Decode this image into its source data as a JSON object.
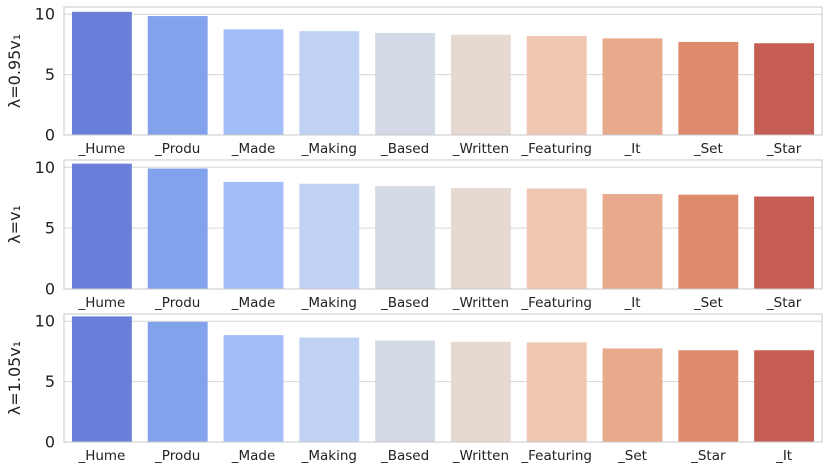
{
  "chart_data": [
    {
      "type": "bar",
      "ylabel": "λ=0.95v₁",
      "ylim": [
        0,
        10.6
      ],
      "yticks": [
        0,
        5,
        10
      ],
      "grid": true,
      "categories": [
        "_Hume",
        "_Produ",
        "_Made",
        "_Making",
        "_Based",
        "_Written",
        "_Featuring",
        "_It",
        "_Set",
        "_Star"
      ],
      "values": [
        10.2,
        9.85,
        8.75,
        8.6,
        8.45,
        8.3,
        8.2,
        8.0,
        7.7,
        7.6
      ],
      "colors": [
        "#6a7fd9",
        "#82a2ec",
        "#a2bdf7",
        "#bfd2f4",
        "#d4dae6",
        "#e6d9d1",
        "#efc6b2",
        "#e8a98c",
        "#dd8a6d",
        "#c65d52"
      ]
    },
    {
      "type": "bar",
      "ylabel": "λ=v₁",
      "ylim": [
        0,
        10.6
      ],
      "yticks": [
        0,
        5,
        10
      ],
      "grid": true,
      "categories": [
        "_Hume",
        "_Produ",
        "_Made",
        "_Making",
        "_Based",
        "_Written",
        "_Featuring",
        "_It",
        "_Set",
        "_Star"
      ],
      "values": [
        10.3,
        9.9,
        8.8,
        8.65,
        8.45,
        8.3,
        8.25,
        7.8,
        7.75,
        7.6
      ],
      "colors": [
        "#6a7fd9",
        "#82a2ec",
        "#a2bdf7",
        "#bfd2f4",
        "#d4dae6",
        "#e6d9d1",
        "#efc6b2",
        "#e8a98c",
        "#dd8a6d",
        "#c65d52"
      ]
    },
    {
      "type": "bar",
      "ylabel": "λ=1.05v₁",
      "ylim": [
        0,
        10.6
      ],
      "yticks": [
        0,
        5,
        10
      ],
      "grid": true,
      "categories": [
        "_Hume",
        "_Produ",
        "_Made",
        "_Making",
        "_Based",
        "_Written",
        "_Featuring",
        "_Set",
        "_Star",
        "_It"
      ],
      "values": [
        10.4,
        9.95,
        8.85,
        8.65,
        8.4,
        8.3,
        8.25,
        7.75,
        7.6,
        7.6
      ],
      "colors": [
        "#6a7fd9",
        "#82a2ec",
        "#a2bdf7",
        "#bfd2f4",
        "#d4dae6",
        "#e6d9d1",
        "#efc6b2",
        "#e8a98c",
        "#dd8a6d",
        "#c65d52"
      ]
    }
  ]
}
